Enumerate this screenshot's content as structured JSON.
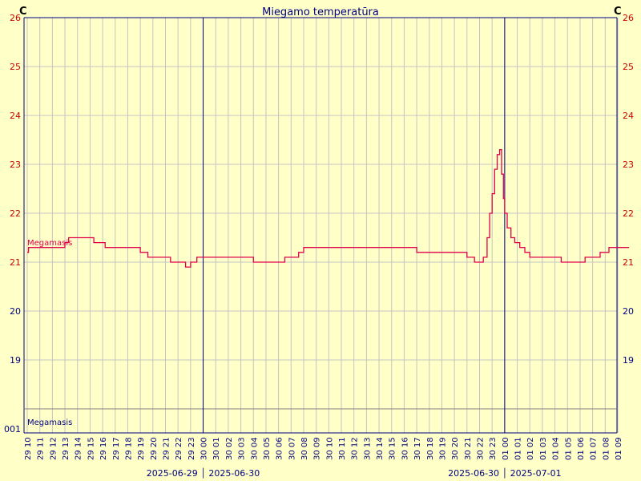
{
  "chart_data": {
    "type": "line",
    "title": "Miegamo temperatūra",
    "unit_left": "C",
    "unit_right": "C",
    "ylim": [
      18,
      26
    ],
    "y_ticks": [
      19,
      20,
      21,
      22,
      23,
      24,
      25,
      26
    ],
    "x_tick_labels": [
      "29 10",
      "29 11",
      "29 12",
      "29 13",
      "29 14",
      "29 15",
      "29 16",
      "29 17",
      "29 18",
      "29 19",
      "29 20",
      "29 21",
      "29 22",
      "29 23",
      "30 00",
      "30 01",
      "30 02",
      "30 03",
      "30 04",
      "30 05",
      "30 06",
      "30 07",
      "30 08",
      "30 09",
      "30 10",
      "30 11",
      "30 12",
      "30 13",
      "30 14",
      "30 15",
      "30 16",
      "30 17",
      "30 18",
      "30 19",
      "30 20",
      "30 21",
      "30 22",
      "30 23",
      "01 00",
      "01 01",
      "01 02",
      "01 03",
      "01 04",
      "01 05",
      "01 06",
      "01 07",
      "01 08",
      "01 09"
    ],
    "day_boundaries": [
      "30 00",
      "01 00"
    ],
    "date_labels": [
      {
        "text": "2025-06-29 │ 2025-06-30",
        "at": "30 00"
      },
      {
        "text": "2025-06-30 │ 2025-07-01",
        "at": "01 00"
      }
    ],
    "series": [
      {
        "name": "Megamasis",
        "color": "#e0004d",
        "points": [
          [
            0.0,
            21.2
          ],
          [
            0.1,
            21.3
          ],
          [
            1.0,
            21.3
          ],
          [
            2.0,
            21.3
          ],
          [
            2.8,
            21.3
          ],
          [
            3.0,
            21.4
          ],
          [
            3.3,
            21.5
          ],
          [
            4.0,
            21.5
          ],
          [
            5.0,
            21.5
          ],
          [
            5.3,
            21.4
          ],
          [
            5.8,
            21.4
          ],
          [
            6.2,
            21.3
          ],
          [
            7.0,
            21.3
          ],
          [
            8.0,
            21.3
          ],
          [
            8.8,
            21.3
          ],
          [
            9.0,
            21.2
          ],
          [
            9.6,
            21.1
          ],
          [
            10.0,
            21.1
          ],
          [
            11.0,
            21.1
          ],
          [
            11.4,
            21.0
          ],
          [
            12.0,
            21.0
          ],
          [
            12.6,
            20.9
          ],
          [
            13.0,
            21.0
          ],
          [
            13.5,
            21.1
          ],
          [
            14.0,
            21.1
          ],
          [
            15.0,
            21.1
          ],
          [
            16.0,
            21.1
          ],
          [
            17.0,
            21.1
          ],
          [
            18.0,
            21.0
          ],
          [
            19.0,
            21.0
          ],
          [
            20.0,
            21.0
          ],
          [
            20.5,
            21.1
          ],
          [
            21.0,
            21.1
          ],
          [
            21.6,
            21.2
          ],
          [
            22.0,
            21.3
          ],
          [
            23.0,
            21.3
          ],
          [
            24.0,
            21.3
          ],
          [
            25.0,
            21.3
          ],
          [
            26.0,
            21.3
          ],
          [
            27.0,
            21.3
          ],
          [
            28.0,
            21.3
          ],
          [
            29.0,
            21.3
          ],
          [
            30.0,
            21.3
          ],
          [
            31.0,
            21.2
          ],
          [
            32.0,
            21.2
          ],
          [
            33.0,
            21.2
          ],
          [
            34.0,
            21.2
          ],
          [
            35.0,
            21.1
          ],
          [
            35.6,
            21.0
          ],
          [
            36.0,
            21.0
          ],
          [
            36.3,
            21.1
          ],
          [
            36.6,
            21.5
          ],
          [
            36.8,
            22.0
          ],
          [
            37.0,
            22.4
          ],
          [
            37.2,
            22.9
          ],
          [
            37.4,
            23.2
          ],
          [
            37.6,
            23.3
          ],
          [
            37.75,
            22.8
          ],
          [
            37.9,
            22.3
          ],
          [
            38.0,
            22.0
          ],
          [
            38.2,
            21.7
          ],
          [
            38.5,
            21.5
          ],
          [
            38.8,
            21.4
          ],
          [
            39.2,
            21.3
          ],
          [
            39.6,
            21.2
          ],
          [
            40.0,
            21.1
          ],
          [
            41.0,
            21.1
          ],
          [
            42.0,
            21.1
          ],
          [
            42.5,
            21.0
          ],
          [
            43.0,
            21.0
          ],
          [
            44.0,
            21.0
          ],
          [
            44.4,
            21.1
          ],
          [
            45.0,
            21.1
          ],
          [
            45.6,
            21.2
          ],
          [
            46.0,
            21.2
          ],
          [
            46.3,
            21.3
          ],
          [
            47.0,
            21.3
          ],
          [
            47.9,
            21.3
          ]
        ]
      }
    ],
    "event_label": "Megamasis",
    "event_row_min_label": "001"
  }
}
